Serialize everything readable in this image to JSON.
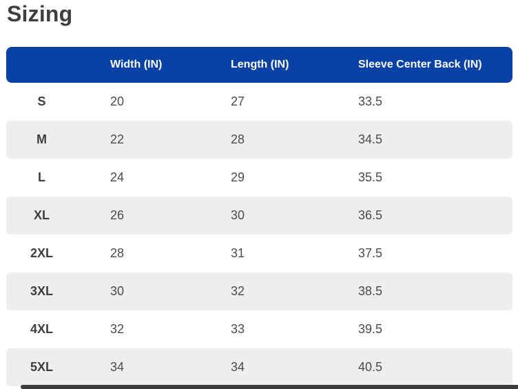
{
  "page": {
    "title": "Sizing"
  },
  "colors": {
    "header_bg": "#0642a5",
    "header_text": "#ffffff",
    "alt_row_bg": "#efedee",
    "label_text": "#3e3e3e",
    "value_text": "#4b4b4b",
    "scrollbar": "#3c3c3c"
  },
  "table": {
    "columns": [
      "",
      "Width (IN)",
      "Length (IN)",
      "Sleeve Center Back (IN)"
    ],
    "rows": [
      {
        "size": "S",
        "width": "20",
        "length": "27",
        "sleeve": "33.5"
      },
      {
        "size": "M",
        "width": "22",
        "length": "28",
        "sleeve": "34.5"
      },
      {
        "size": "L",
        "width": "24",
        "length": "29",
        "sleeve": "35.5"
      },
      {
        "size": "XL",
        "width": "26",
        "length": "30",
        "sleeve": "36.5"
      },
      {
        "size": "2XL",
        "width": "28",
        "length": "31",
        "sleeve": "37.5"
      },
      {
        "size": "3XL",
        "width": "30",
        "length": "32",
        "sleeve": "38.5"
      },
      {
        "size": "4XL",
        "width": "32",
        "length": "33",
        "sleeve": "39.5"
      },
      {
        "size": "5XL",
        "width": "34",
        "length": "34",
        "sleeve": "40.5"
      }
    ]
  }
}
